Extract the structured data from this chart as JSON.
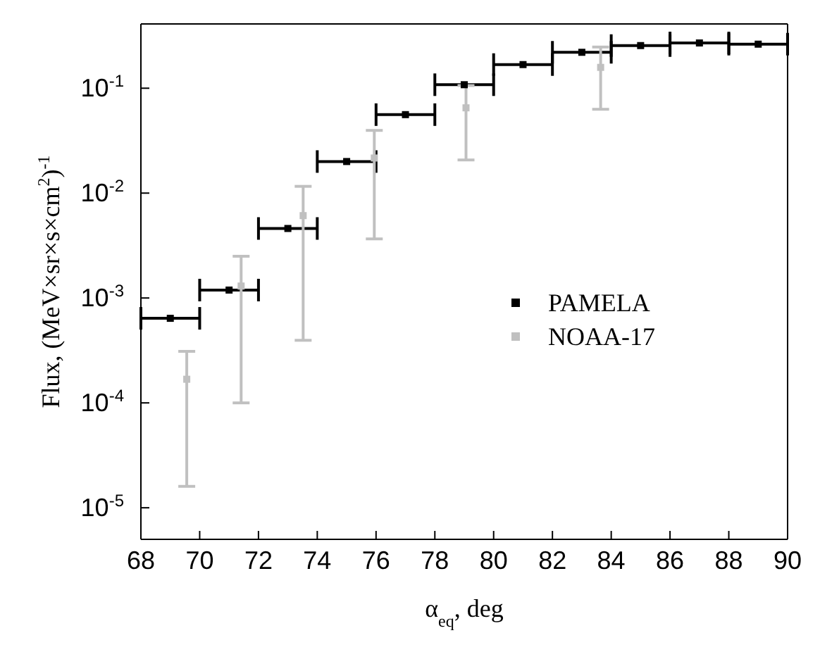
{
  "chart_data": {
    "type": "scatter",
    "xlabel": "α$_{eq}$, deg",
    "ylabel": "Flux, (MeV×sr×s×cm$^{2}$)$^{-1}$",
    "log": "y",
    "grid": false,
    "legend": "right",
    "marker": "square",
    "xlim": [
      68,
      90
    ],
    "xticks": [
      68,
      70,
      72,
      74,
      76,
      78,
      80,
      82,
      84,
      86,
      88,
      90
    ],
    "ylim": [
      5e-06,
      0.41
    ],
    "yticks": [
      {
        "value": 1e-05,
        "label": "10$^{-5}$"
      },
      {
        "value": 0.0001,
        "label": "10$^{-4}$"
      },
      {
        "value": 0.001,
        "label": "10$^{-3}$"
      },
      {
        "value": 0.01,
        "label": "10$^{-2}$"
      },
      {
        "value": 0.1,
        "label": "10$^{-1}$"
      }
    ],
    "series": [
      {
        "name": "PAMELA",
        "color": "#000000",
        "x": [
          69,
          71,
          73,
          75,
          77,
          79,
          81,
          83,
          85,
          87,
          89
        ],
        "values": [
          0.00064,
          0.00119,
          0.0046,
          0.02,
          0.056,
          0.108,
          0.168,
          0.22,
          0.255,
          0.27,
          0.263
        ],
        "xerrors": [
          1,
          1,
          1,
          1,
          1,
          1,
          1,
          1,
          1,
          1,
          1
        ]
      },
      {
        "name": "NOAA-17",
        "color": "#c0c0c0",
        "x": [
          69.56,
          71.41,
          73.52,
          75.94,
          79.06,
          83.64
        ],
        "values": [
          0.000168,
          0.0013,
          0.0061,
          0.0216,
          0.065,
          0.158
        ],
        "errors": [
          [
            1.6e-05,
            0.00031
          ],
          [
            0.0001,
            0.0025
          ],
          [
            0.000395,
            0.0116
          ],
          [
            0.00366,
            0.0396
          ],
          [
            0.0207,
            0.106
          ],
          [
            0.063,
            0.247
          ]
        ]
      }
    ]
  }
}
